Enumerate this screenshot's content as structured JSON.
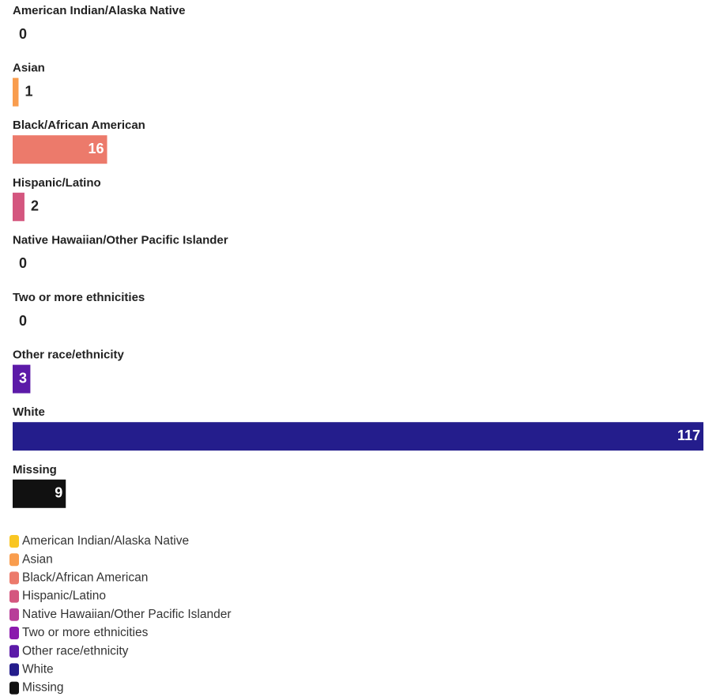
{
  "chart_data": {
    "type": "bar",
    "orientation": "horizontal",
    "categories": [
      "American Indian/Alaska Native",
      "Asian",
      "Black/African American",
      "Hispanic/Latino",
      "Native Hawaiian/Other Pacific Islander",
      "Two or more ethnicities",
      "Other race/ethnicity",
      "White",
      "Missing"
    ],
    "values": [
      0,
      1,
      16,
      2,
      0,
      0,
      3,
      117,
      9
    ],
    "colors": [
      "#f9c623",
      "#f99d4e",
      "#ec7a6b",
      "#d4567f",
      "#b83f99",
      "#8b1aad",
      "#5c1aa8",
      "#241d8c",
      "#111111"
    ],
    "legend": "bottom-left"
  }
}
